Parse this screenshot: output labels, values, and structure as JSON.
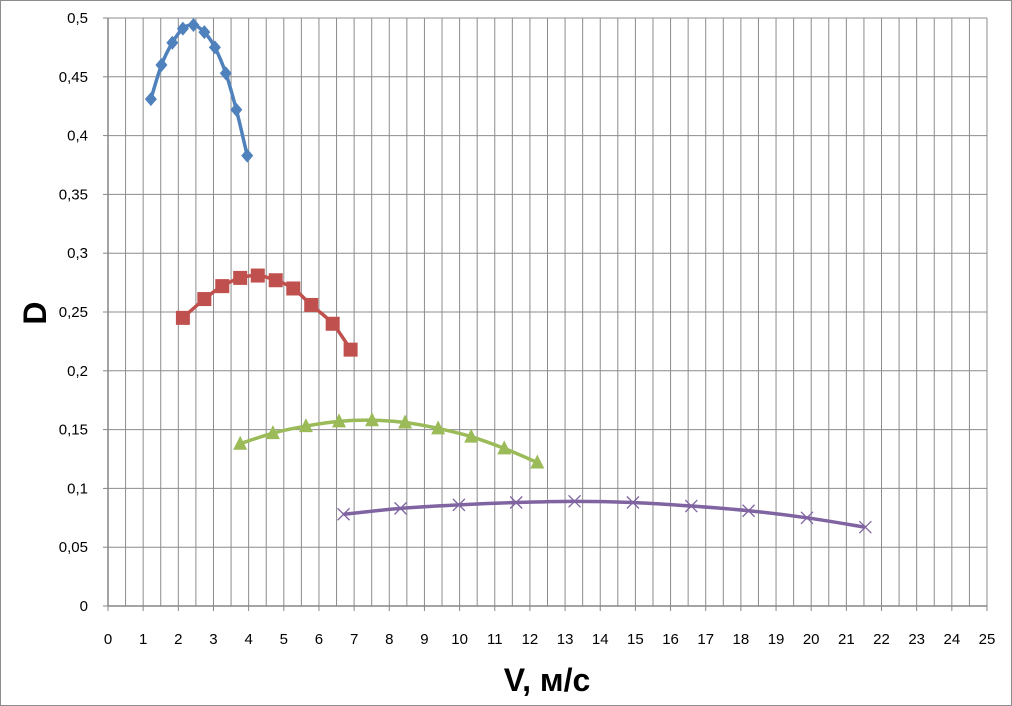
{
  "chart_data": {
    "type": "line",
    "title": "",
    "xlabel": "V, м/с",
    "ylabel": "D",
    "xlim": [
      0,
      25
    ],
    "ylim": [
      0,
      0.5
    ],
    "x_ticks": [
      "0",
      "1",
      "2",
      "3",
      "4",
      "5",
      "6",
      "7",
      "8",
      "9",
      "10",
      "11",
      "12",
      "13",
      "14",
      "15",
      "16",
      "17",
      "18",
      "19",
      "20",
      "21",
      "22",
      "23",
      "24",
      "25"
    ],
    "y_ticks": [
      "0",
      "0,05",
      "0,1",
      "0,15",
      "0,2",
      "0,25",
      "0,3",
      "0,35",
      "0,4",
      "0,45",
      "0,5"
    ],
    "grid": true,
    "minor_grid_x": 0.5,
    "legend": "none",
    "series": [
      {
        "color": "#4F81BD",
        "marker": "diamond",
        "x": [
          1.22,
          1.52,
          1.83,
          2.13,
          2.43,
          2.74,
          3.04,
          3.35,
          3.65,
          3.96
        ],
        "y": [
          0.431,
          0.46,
          0.479,
          0.491,
          0.494,
          0.488,
          0.475,
          0.453,
          0.422,
          0.383
        ]
      },
      {
        "color": "#C0504D",
        "marker": "square",
        "x": [
          2.13,
          2.74,
          3.25,
          3.76,
          4.26,
          4.77,
          5.27,
          5.78,
          6.39,
          6.9
        ],
        "y": [
          0.245,
          0.261,
          0.272,
          0.279,
          0.281,
          0.277,
          0.27,
          0.256,
          0.24,
          0.218
        ]
      },
      {
        "color": "#9BBB59",
        "marker": "triangle",
        "x": [
          3.76,
          4.69,
          5.63,
          6.57,
          7.51,
          8.45,
          9.39,
          10.33,
          11.27,
          12.21
        ],
        "y": [
          0.138,
          0.147,
          0.153,
          0.157,
          0.158,
          0.156,
          0.151,
          0.144,
          0.134,
          0.122
        ]
      },
      {
        "color": "#8064A2",
        "marker": "x",
        "x": [
          6.7,
          8.32,
          9.98,
          11.61,
          13.27,
          14.93,
          16.59,
          18.22,
          19.88,
          21.54
        ],
        "y": [
          0.078,
          0.083,
          0.086,
          0.088,
          0.089,
          0.088,
          0.085,
          0.081,
          0.075,
          0.067
        ]
      }
    ]
  }
}
